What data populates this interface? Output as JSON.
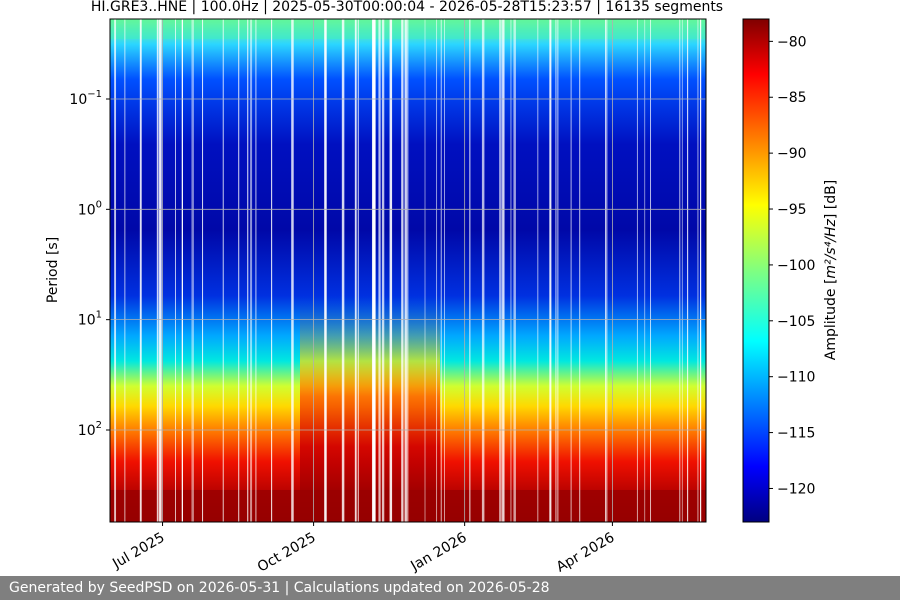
{
  "chart_data": {
    "type": "heatmap",
    "title": "HI.GRE3..HNE | 100.0Hz | 2025-05-30T00:00:04 - 2026-05-28T15:23:57 | 16135 segments",
    "ylabel": "Period [s]",
    "y_scale": "log",
    "y_ticks": [
      {
        "value": 0.1,
        "base": "10",
        "exp": "−1"
      },
      {
        "value": 1,
        "base": "10",
        "exp": "0"
      },
      {
        "value": 10,
        "base": "10",
        "exp": "1"
      },
      {
        "value": 100,
        "base": "10",
        "exp": "2"
      }
    ],
    "x_ticks": [
      {
        "date": "2025-07-01",
        "label": "Jul 2025"
      },
      {
        "date": "2025-10-01",
        "label": "Oct 2025"
      },
      {
        "date": "2026-01-01",
        "label": "Jan 2026"
      },
      {
        "date": "2026-04-01",
        "label": "Apr 2026"
      }
    ],
    "xlim": [
      "2025-05-30",
      "2026-05-28"
    ],
    "colorbar": {
      "label_prefix": "Amplitude [",
      "label_unit": "m²/s⁴/Hz",
      "label_suffix": "] [dB]",
      "range": [
        -123,
        -78
      ],
      "ticks": [
        -80,
        -85,
        -90,
        -95,
        -100,
        -105,
        -110,
        -115,
        -120
      ],
      "colormap": "jet"
    },
    "grid": true
  },
  "footer": {
    "text": "Generated by SeedPSD on 2026-05-31 | Calculations updated on 2026-05-28"
  },
  "colors": {
    "footer_bg": "#7f7f7f",
    "footer_text": "#ffffff"
  }
}
